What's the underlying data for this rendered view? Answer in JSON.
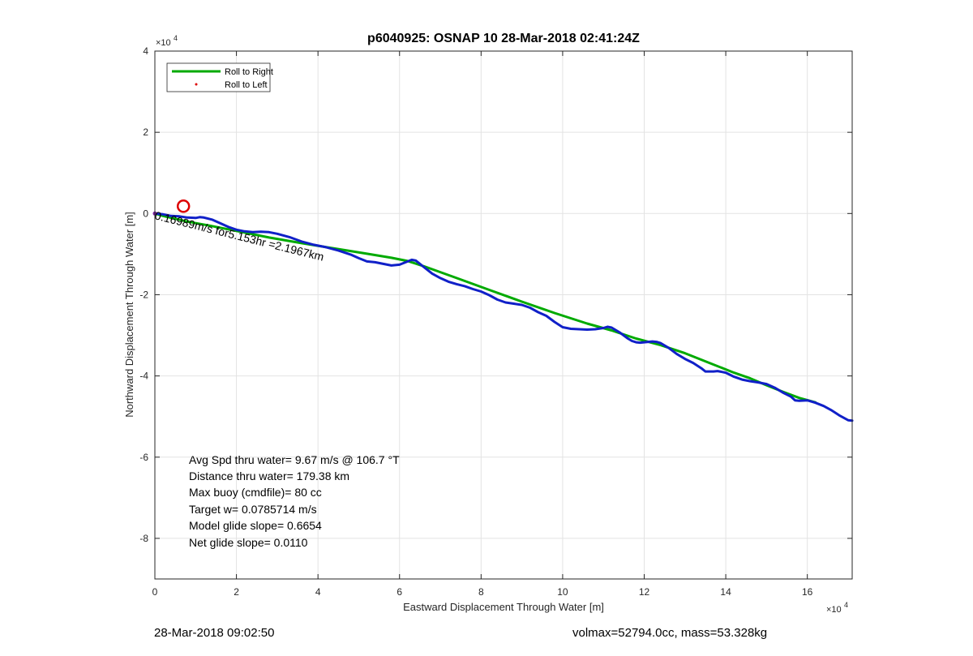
{
  "chart_data": {
    "type": "line",
    "title": "p6040925: OSNAP 10 28-Mar-2018 02:41:24Z",
    "xlabel": "Eastward Displacement Through Water [m]",
    "ylabel": "Northward Displacement Through Water [m]",
    "xlim": [
      0,
      171000
    ],
    "ylim": [
      -90000,
      40000
    ],
    "x_exponent_label": "×10",
    "x_exponent_power": "4",
    "y_exponent_label": "×10",
    "y_exponent_power": "4",
    "x_ticks": [
      0,
      20000,
      40000,
      60000,
      80000,
      100000,
      120000,
      140000,
      160000
    ],
    "x_tick_labels": [
      "0",
      "2",
      "4",
      "6",
      "8",
      "10",
      "12",
      "14",
      "16"
    ],
    "y_ticks": [
      40000,
      20000,
      0,
      -20000,
      -40000,
      -60000,
      -80000
    ],
    "y_tick_labels": [
      "4",
      "2",
      "0",
      "-2",
      "-4",
      "-6",
      "-8"
    ],
    "grid": true,
    "legend_position": "top-left",
    "legend": [
      {
        "label": "Roll to Right",
        "color": "#00aa00",
        "style": "line"
      },
      {
        "label": "Roll to Left",
        "color": "#dd0000",
        "style": "dot"
      }
    ],
    "series": [
      {
        "name": "Roll to Right",
        "color": "#00aa00",
        "x": [
          0,
          2000,
          8000,
          14000,
          20000,
          28000,
          36000,
          44000,
          52000,
          58000,
          62000,
          66000,
          74000,
          82000,
          90000,
          98000,
          106000,
          112000,
          118000,
          124000,
          130000,
          136000,
          142000,
          146000,
          150000,
          154000,
          158000,
          162000
        ],
        "y": [
          0,
          -600,
          -2000,
          -3100,
          -4300,
          -5900,
          -7300,
          -8600,
          -9900,
          -10900,
          -11700,
          -13000,
          -15900,
          -18800,
          -21700,
          -24500,
          -27100,
          -28800,
          -30800,
          -32400,
          -34400,
          -36800,
          -39200,
          -40600,
          -42300,
          -43900,
          -45400,
          -46500
        ]
      },
      {
        "name": "",
        "color": "#1020c8",
        "x": [
          0,
          2000,
          4000,
          6000,
          8000,
          10000,
          11000,
          12000,
          14000,
          16000,
          18000,
          20000,
          22000,
          24000,
          26000,
          28000,
          30000,
          33000,
          36000,
          39000,
          42000,
          45000,
          48000,
          50000,
          52000,
          54000,
          56000,
          58000,
          60000,
          62000,
          63000,
          64000,
          66000,
          68000,
          70000,
          72000,
          74000,
          76000,
          78000,
          80000,
          82000,
          84000,
          86000,
          88000,
          90000,
          92000,
          94000,
          96000,
          98000,
          100000,
          101000,
          102000,
          104000,
          106000,
          108000,
          110000,
          111000,
          112000,
          114000,
          116000,
          117000,
          118000,
          119000,
          120000,
          122000,
          123000,
          124000,
          126000,
          128000,
          130000,
          132000,
          134000,
          135000,
          136000,
          137000,
          138000,
          140000,
          142000,
          144000,
          146000,
          148000,
          150000,
          152000,
          154000,
          156000,
          157000,
          158000,
          160000,
          162000,
          164000,
          166000,
          168000,
          170000,
          171000
        ],
        "y": [
          0,
          -200,
          -600,
          -700,
          -1000,
          -1100,
          -900,
          -1000,
          -1500,
          -2400,
          -3300,
          -4000,
          -4400,
          -4600,
          -4500,
          -4600,
          -5000,
          -5800,
          -6900,
          -7700,
          -8300,
          -9100,
          -10100,
          -11000,
          -11800,
          -12000,
          -12400,
          -12800,
          -12600,
          -11800,
          -11400,
          -11600,
          -13200,
          -14800,
          -15900,
          -16800,
          -17400,
          -17900,
          -18600,
          -19200,
          -20100,
          -21200,
          -21900,
          -22200,
          -22500,
          -23200,
          -24300,
          -25200,
          -26700,
          -28000,
          -28200,
          -28400,
          -28500,
          -28600,
          -28500,
          -28200,
          -27900,
          -28100,
          -29300,
          -30800,
          -31400,
          -31700,
          -31800,
          -31700,
          -31500,
          -31600,
          -31900,
          -33100,
          -34600,
          -35800,
          -36800,
          -38100,
          -38900,
          -38900,
          -38900,
          -38800,
          -39200,
          -40200,
          -40900,
          -41300,
          -41600,
          -42000,
          -42900,
          -44100,
          -45100,
          -46000,
          -46100,
          -46000,
          -46600,
          -47400,
          -48500,
          -49800,
          -50900,
          -51000
        ]
      }
    ],
    "annotations": [
      "0.16989m/s for5.153hr =2.1967km",
      "Avg Spd thru water=  9.67 m/s @ 106.7 °T",
      "Distance thru water= 179.38 km",
      "Max buoy (cmdfile)= 80 cc",
      "Target w= 0.0785714 m/s",
      "Model glide slope= 0.6654",
      "Net glide slope= 0.0110"
    ]
  },
  "footer": {
    "timestamp": "28-Mar-2018 09:02:50",
    "vol_mass": "volmax=52794.0cc, mass=53.328kg"
  }
}
